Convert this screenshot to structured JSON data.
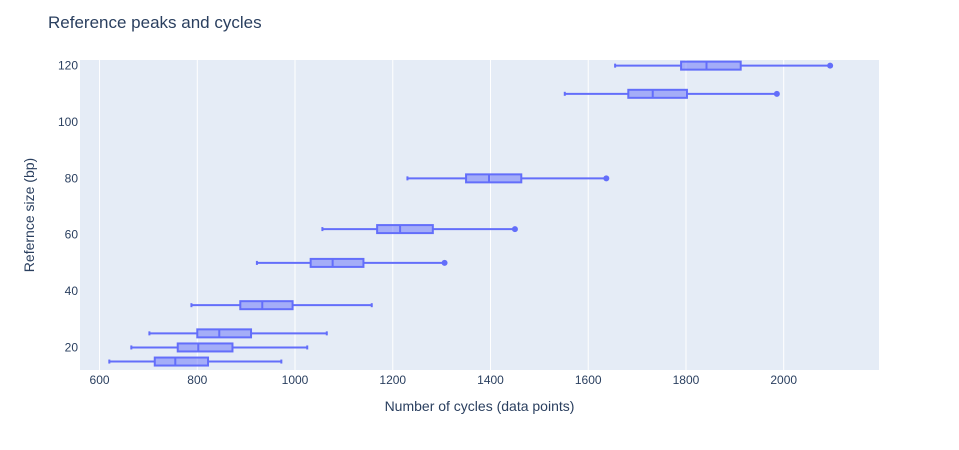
{
  "chart_data": {
    "type": "box",
    "orientation": "horizontal",
    "title": "Reference peaks and cycles",
    "xlabel": "Number of cycles (data points)",
    "ylabel": "Refernce size (bp)",
    "xlim": [
      560,
      2195
    ],
    "ylim": [
      12,
      122
    ],
    "x_ticks": [
      600,
      800,
      1000,
      1200,
      1400,
      1600,
      1800,
      2000
    ],
    "y_ticks": [
      20,
      40,
      60,
      80,
      100,
      120
    ],
    "grid": true,
    "legend": "none",
    "series": [
      {
        "y": 15,
        "min": 620,
        "q1": 713,
        "median": 755,
        "q3": 822,
        "max": 972,
        "outlier": null
      },
      {
        "y": 20,
        "min": 665,
        "q1": 760,
        "median": 802,
        "q3": 872,
        "max": 1025,
        "outlier": null
      },
      {
        "y": 25,
        "min": 702,
        "q1": 800,
        "median": 845,
        "q3": 910,
        "max": 1065,
        "outlier": null
      },
      {
        "y": 35,
        "min": 788,
        "q1": 888,
        "median": 933,
        "q3": 995,
        "max": 1157,
        "outlier": null
      },
      {
        "y": 50,
        "min": 922,
        "q1": 1032,
        "median": 1077,
        "q3": 1140,
        "max": null,
        "outlier": 1306
      },
      {
        "y": 62,
        "min": 1056,
        "q1": 1168,
        "median": 1215,
        "q3": 1282,
        "max": null,
        "outlier": 1450
      },
      {
        "y": 80,
        "min": 1230,
        "q1": 1350,
        "median": 1397,
        "q3": 1463,
        "max": null,
        "outlier": 1637
      },
      {
        "y": 110,
        "min": 1552,
        "q1": 1682,
        "median": 1732,
        "q3": 1802,
        "max": null,
        "outlier": 1986
      },
      {
        "y": 120,
        "min": 1655,
        "q1": 1790,
        "median": 1842,
        "q3": 1912,
        "max": null,
        "outlier": 2095
      }
    ]
  },
  "colors": {
    "plot_bg": "#e5ecf6",
    "grid": "#ffffff",
    "box_line": "#636efa",
    "box_fill": "#636efa",
    "text": "#2a3f5f"
  }
}
